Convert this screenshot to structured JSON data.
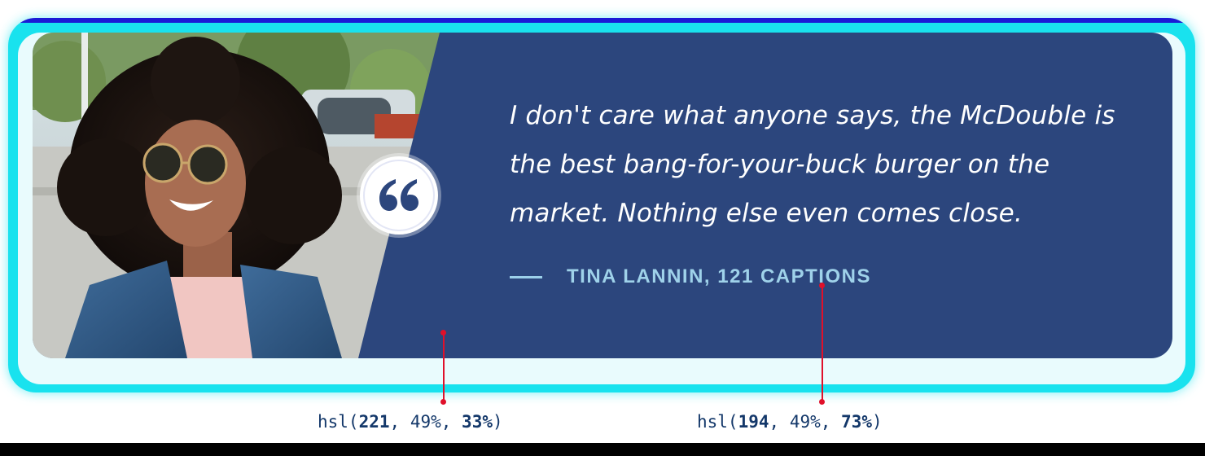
{
  "testimonial": {
    "quote": "I don't care what anyone says, the McDouble is the best bang-for-your-buck burger on the market. Nothing else even comes close.",
    "attribution": "TINA LANNIN, 121 CAPTIONS"
  },
  "annotations": [
    {
      "prefix": "hsl(",
      "h": "221",
      "sep1": ", ",
      "s": "49%",
      "sep2": ", ",
      "l": "33%",
      "suffix": ")"
    },
    {
      "prefix": "hsl(",
      "h": "194",
      "sep1": ", ",
      "s": "49%",
      "sep2": ", ",
      "l": "73%",
      "suffix": ")"
    }
  ],
  "colors": {
    "card_background": "#2c467d",
    "attribution_text": "#9fd2ea",
    "quote_mark": "#2c467d",
    "pointer": "#e0102a"
  },
  "icons": {
    "quote_mark": "left-double-quote-icon"
  }
}
